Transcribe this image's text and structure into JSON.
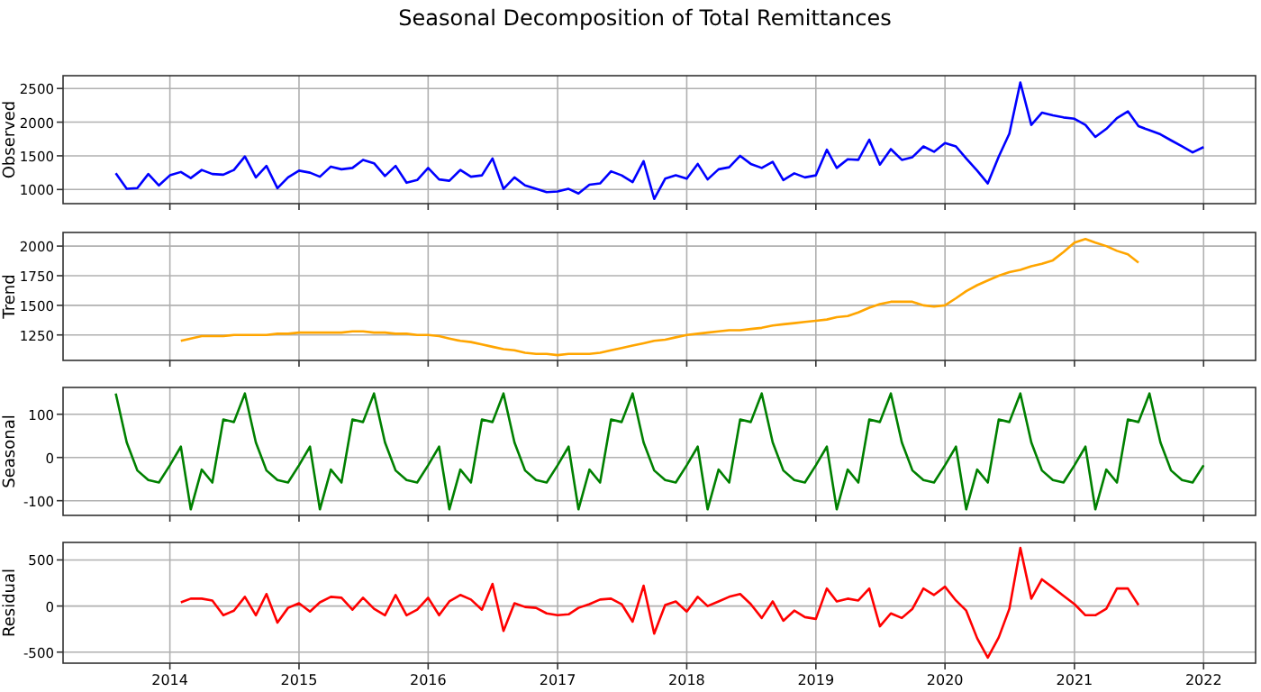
{
  "chart_data": [
    {
      "type": "line",
      "title": "Seasonal Decomposition of Total Remittances",
      "ylabel": "Observed",
      "grid": true,
      "tick_labels": "y",
      "xlim": [
        "2013-03-05",
        "2022-05-28"
      ],
      "ylim": [
        790,
        2690
      ],
      "xticks": [
        "2014",
        "2015",
        "2016",
        "2017",
        "2018",
        "2019",
        "2020",
        "2021",
        "2022"
      ],
      "yticks": [
        1000,
        1500,
        2000,
        2500
      ],
      "x": [
        "2013-08",
        "2013-09",
        "2013-10",
        "2013-11",
        "2013-12",
        "2014-01",
        "2014-02",
        "2014-03",
        "2014-04",
        "2014-05",
        "2014-06",
        "2014-07",
        "2014-08",
        "2014-09",
        "2014-10",
        "2014-11",
        "2014-12",
        "2015-01",
        "2015-02",
        "2015-03",
        "2015-04",
        "2015-05",
        "2015-06",
        "2015-07",
        "2015-08",
        "2015-09",
        "2015-10",
        "2015-11",
        "2015-12",
        "2016-01",
        "2016-02",
        "2016-03",
        "2016-04",
        "2016-05",
        "2016-06",
        "2016-07",
        "2016-08",
        "2016-09",
        "2016-10",
        "2016-11",
        "2016-12",
        "2017-01",
        "2017-02",
        "2017-03",
        "2017-04",
        "2017-05",
        "2017-06",
        "2017-07",
        "2017-08",
        "2017-09",
        "2017-10",
        "2017-11",
        "2017-12",
        "2018-01",
        "2018-02",
        "2018-03",
        "2018-04",
        "2018-05",
        "2018-06",
        "2018-07",
        "2018-08",
        "2018-09",
        "2018-10",
        "2018-11",
        "2018-12",
        "2019-01",
        "2019-02",
        "2019-03",
        "2019-04",
        "2019-05",
        "2019-06",
        "2019-07",
        "2019-08",
        "2019-09",
        "2019-10",
        "2019-11",
        "2019-12",
        "2020-01",
        "2020-02",
        "2020-03",
        "2020-04",
        "2020-05",
        "2020-06",
        "2020-07",
        "2020-08",
        "2020-09",
        "2020-10",
        "2020-11",
        "2020-12",
        "2021-01",
        "2021-02",
        "2021-03",
        "2021-04",
        "2021-05",
        "2021-06",
        "2021-07",
        "2021-08",
        "2021-09",
        "2021-10",
        "2021-11",
        "2021-12",
        "2022-01"
      ],
      "series": [
        {
          "color": "#0000ff",
          "values": [
            1240,
            1010,
            1020,
            1230,
            1060,
            1210,
            1260,
            1170,
            1290,
            1230,
            1220,
            1290,
            1490,
            1180,
            1350,
            1020,
            1180,
            1280,
            1250,
            1190,
            1340,
            1300,
            1320,
            1440,
            1390,
            1200,
            1350,
            1100,
            1140,
            1320,
            1150,
            1130,
            1290,
            1190,
            1210,
            1460,
            1010,
            1180,
            1060,
            1010,
            960,
            970,
            1010,
            940,
            1070,
            1090,
            1270,
            1210,
            1110,
            1420,
            860,
            1160,
            1210,
            1160,
            1380,
            1150,
            1300,
            1330,
            1500,
            1380,
            1320,
            1410,
            1140,
            1240,
            1180,
            1210,
            1590,
            1320,
            1450,
            1440,
            1740,
            1370,
            1600,
            1440,
            1480,
            1640,
            1560,
            1690,
            1640,
            1460,
            1280,
            1090,
            1490,
            1830,
            2590,
            1960,
            2140,
            2100,
            2070,
            2050,
            1960,
            1780,
            1900,
            2060,
            2160,
            1940,
            1880,
            1820,
            1730,
            1640,
            1550,
            1630
          ]
        }
      ]
    },
    {
      "type": "line",
      "ylabel": "Trend",
      "grid": true,
      "tick_labels": "y",
      "xlim": [
        "2013-03-05",
        "2022-05-28"
      ],
      "ylim": [
        1035,
        2115
      ],
      "xticks": [
        "2014",
        "2015",
        "2016",
        "2017",
        "2018",
        "2019",
        "2020",
        "2021",
        "2022"
      ],
      "yticks": [
        1250,
        1500,
        1750,
        2000
      ],
      "series": [
        {
          "color": "#ffa500",
          "x": [
            "2014-02",
            "2014-03",
            "2014-04",
            "2014-05",
            "2014-06",
            "2014-07",
            "2014-08",
            "2014-09",
            "2014-10",
            "2014-11",
            "2014-12",
            "2015-01",
            "2015-02",
            "2015-03",
            "2015-04",
            "2015-05",
            "2015-06",
            "2015-07",
            "2015-08",
            "2015-09",
            "2015-10",
            "2015-11",
            "2015-12",
            "2016-01",
            "2016-02",
            "2016-03",
            "2016-04",
            "2016-05",
            "2016-06",
            "2016-07",
            "2016-08",
            "2016-09",
            "2016-10",
            "2016-11",
            "2016-12",
            "2017-01",
            "2017-02",
            "2017-03",
            "2017-04",
            "2017-05",
            "2017-06",
            "2017-07",
            "2017-08",
            "2017-09",
            "2017-10",
            "2017-11",
            "2017-12",
            "2018-01",
            "2018-02",
            "2018-03",
            "2018-04",
            "2018-05",
            "2018-06",
            "2018-07",
            "2018-08",
            "2018-09",
            "2018-10",
            "2018-11",
            "2018-12",
            "2019-01",
            "2019-02",
            "2019-03",
            "2019-04",
            "2019-05",
            "2019-06",
            "2019-07",
            "2019-08",
            "2019-09",
            "2019-10",
            "2019-11",
            "2019-12",
            "2020-01",
            "2020-02",
            "2020-03",
            "2020-04",
            "2020-05",
            "2020-06",
            "2020-07",
            "2020-08",
            "2020-09",
            "2020-10",
            "2020-11",
            "2020-12",
            "2021-01",
            "2021-02",
            "2021-03",
            "2021-04",
            "2021-05",
            "2021-06",
            "2021-07"
          ],
          "values": [
            1200,
            1220,
            1240,
            1240,
            1240,
            1250,
            1250,
            1250,
            1250,
            1260,
            1260,
            1270,
            1270,
            1270,
            1270,
            1270,
            1280,
            1280,
            1270,
            1270,
            1260,
            1260,
            1250,
            1250,
            1240,
            1220,
            1200,
            1190,
            1170,
            1150,
            1130,
            1120,
            1100,
            1090,
            1090,
            1080,
            1090,
            1090,
            1090,
            1100,
            1120,
            1140,
            1160,
            1180,
            1200,
            1210,
            1230,
            1250,
            1260,
            1270,
            1280,
            1290,
            1290,
            1300,
            1310,
            1330,
            1340,
            1350,
            1360,
            1370,
            1380,
            1400,
            1410,
            1440,
            1480,
            1510,
            1530,
            1530,
            1530,
            1500,
            1490,
            1500,
            1560,
            1620,
            1670,
            1710,
            1750,
            1780,
            1800,
            1830,
            1850,
            1880,
            1950,
            2030,
            2060,
            2030,
            2000,
            1960,
            1930,
            1860
          ]
        }
      ]
    },
    {
      "type": "line",
      "ylabel": "Seasonal",
      "grid": true,
      "tick_labels": "y",
      "xlim": [
        "2013-03-05",
        "2022-05-28"
      ],
      "ylim": [
        -134,
        162
      ],
      "xticks": [
        "2014",
        "2015",
        "2016",
        "2017",
        "2018",
        "2019",
        "2020",
        "2021",
        "2022"
      ],
      "yticks": [
        -100,
        0,
        100
      ],
      "x": [
        "2013-08",
        "2013-09",
        "2013-10",
        "2013-11",
        "2013-12",
        "2014-01",
        "2014-02",
        "2014-03",
        "2014-04",
        "2014-05",
        "2014-06",
        "2014-07",
        "2014-08",
        "2014-09",
        "2014-10",
        "2014-11",
        "2014-12",
        "2015-01",
        "2015-02",
        "2015-03",
        "2015-04",
        "2015-05",
        "2015-06",
        "2015-07",
        "2015-08",
        "2015-09",
        "2015-10",
        "2015-11",
        "2015-12",
        "2016-01",
        "2016-02",
        "2016-03",
        "2016-04",
        "2016-05",
        "2016-06",
        "2016-07",
        "2016-08",
        "2016-09",
        "2016-10",
        "2016-11",
        "2016-12",
        "2017-01",
        "2017-02",
        "2017-03",
        "2017-04",
        "2017-05",
        "2017-06",
        "2017-07",
        "2017-08",
        "2017-09",
        "2017-10",
        "2017-11",
        "2017-12",
        "2018-01",
        "2018-02",
        "2018-03",
        "2018-04",
        "2018-05",
        "2018-06",
        "2018-07",
        "2018-08",
        "2018-09",
        "2018-10",
        "2018-11",
        "2018-12",
        "2019-01",
        "2019-02",
        "2019-03",
        "2019-04",
        "2019-05",
        "2019-06",
        "2019-07",
        "2019-08",
        "2019-09",
        "2019-10",
        "2019-11",
        "2019-12",
        "2020-01",
        "2020-02",
        "2020-03",
        "2020-04",
        "2020-05",
        "2020-06",
        "2020-07",
        "2020-08",
        "2020-09",
        "2020-10",
        "2020-11",
        "2020-12",
        "2021-01",
        "2021-02",
        "2021-03",
        "2021-04",
        "2021-05",
        "2021-06",
        "2021-07",
        "2021-08",
        "2021-09",
        "2021-10",
        "2021-11",
        "2021-12",
        "2022-01"
      ],
      "series": [
        {
          "color": "#008000",
          "values": [
            148,
            35,
            -30,
            -52,
            -58,
            -18,
            25,
            -120,
            -28,
            -58,
            88,
            82,
            148,
            35,
            -30,
            -52,
            -58,
            -18,
            25,
            -120,
            -28,
            -58,
            88,
            82,
            148,
            35,
            -30,
            -52,
            -58,
            -18,
            25,
            -120,
            -28,
            -58,
            88,
            82,
            148,
            35,
            -30,
            -52,
            -58,
            -18,
            25,
            -120,
            -28,
            -58,
            88,
            82,
            148,
            35,
            -30,
            -52,
            -58,
            -18,
            25,
            -120,
            -28,
            -58,
            88,
            82,
            148,
            35,
            -30,
            -52,
            -58,
            -18,
            25,
            -120,
            -28,
            -58,
            88,
            82,
            148,
            35,
            -30,
            -52,
            -58,
            -18,
            25,
            -120,
            -28,
            -58,
            88,
            82,
            148,
            35,
            -30,
            -52,
            -58,
            -18,
            25,
            -120,
            -28,
            -58,
            88,
            82,
            148,
            35,
            -30,
            -52,
            -58,
            -18
          ]
        }
      ]
    },
    {
      "type": "line",
      "ylabel": "Residual",
      "grid": true,
      "xlim": [
        "2013-03-05",
        "2022-05-28"
      ],
      "ylim": [
        -620,
        690
      ],
      "xticks": [
        "2014",
        "2015",
        "2016",
        "2017",
        "2018",
        "2019",
        "2020",
        "2021",
        "2022"
      ],
      "yticks": [
        -500,
        0,
        500
      ],
      "series": [
        {
          "color": "#ff0000",
          "x": [
            "2014-02",
            "2014-03",
            "2014-04",
            "2014-05",
            "2014-06",
            "2014-07",
            "2014-08",
            "2014-09",
            "2014-10",
            "2014-11",
            "2014-12",
            "2015-01",
            "2015-02",
            "2015-03",
            "2015-04",
            "2015-05",
            "2015-06",
            "2015-07",
            "2015-08",
            "2015-09",
            "2015-10",
            "2015-11",
            "2015-12",
            "2016-01",
            "2016-02",
            "2016-03",
            "2016-04",
            "2016-05",
            "2016-06",
            "2016-07",
            "2016-08",
            "2016-09",
            "2016-10",
            "2016-11",
            "2016-12",
            "2017-01",
            "2017-02",
            "2017-03",
            "2017-04",
            "2017-05",
            "2017-06",
            "2017-07",
            "2017-08",
            "2017-09",
            "2017-10",
            "2017-11",
            "2017-12",
            "2018-01",
            "2018-02",
            "2018-03",
            "2018-04",
            "2018-05",
            "2018-06",
            "2018-07",
            "2018-08",
            "2018-09",
            "2018-10",
            "2018-11",
            "2018-12",
            "2019-01",
            "2019-02",
            "2019-03",
            "2019-04",
            "2019-05",
            "2019-06",
            "2019-07",
            "2019-08",
            "2019-09",
            "2019-10",
            "2019-11",
            "2019-12",
            "2020-01",
            "2020-02",
            "2020-03",
            "2020-04",
            "2020-05",
            "2020-06",
            "2020-07",
            "2020-08",
            "2020-09",
            "2020-10",
            "2020-11",
            "2020-12",
            "2021-01",
            "2021-02",
            "2021-03",
            "2021-04",
            "2021-05",
            "2021-06",
            "2021-07"
          ],
          "values": [
            40,
            80,
            80,
            60,
            -100,
            -50,
            100,
            -100,
            130,
            -180,
            -20,
            30,
            -60,
            40,
            100,
            90,
            -40,
            90,
            -30,
            -100,
            120,
            -100,
            -40,
            90,
            -100,
            50,
            120,
            70,
            -40,
            240,
            -270,
            30,
            -10,
            -20,
            -80,
            -100,
            -90,
            -20,
            20,
            70,
            80,
            20,
            -170,
            220,
            -300,
            10,
            50,
            -60,
            100,
            0,
            50,
            100,
            130,
            20,
            -130,
            50,
            -160,
            -50,
            -120,
            -140,
            190,
            50,
            80,
            60,
            190,
            -220,
            -80,
            -130,
            -30,
            190,
            120,
            210,
            60,
            -50,
            -350,
            -560,
            -340,
            -30,
            630,
            80,
            290,
            200,
            110,
            20,
            -100,
            -100,
            -30,
            190,
            190,
            10
          ]
        }
      ]
    }
  ]
}
